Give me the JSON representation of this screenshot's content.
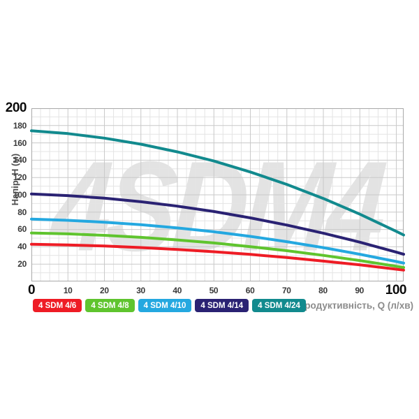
{
  "chart_data": {
    "type": "line",
    "watermark": "4SDM4",
    "xlabel": "Продуктивність, Q (л/хв)",
    "ylabel": "Напір, H (м)",
    "xlim": [
      0,
      102
    ],
    "ylim": [
      0,
      200
    ],
    "x": [
      0,
      10,
      20,
      30,
      40,
      50,
      60,
      70,
      80,
      90,
      100,
      102
    ],
    "x_tick_labels": [
      "0",
      "10",
      "20",
      "30",
      "40",
      "50",
      "60",
      "70",
      "80",
      "90",
      "100"
    ],
    "y_tick_labels": [
      "200",
      "180",
      "160",
      "140",
      "120",
      "100",
      "80",
      "60",
      "40",
      "20"
    ],
    "grid": {
      "minor_x_step": 2.5,
      "major_x_step": 10,
      "minor_y_step": 10,
      "major_y_step": 20,
      "minor_color": "#e4e4e4",
      "major_color": "#c9c9c9",
      "border_color": "#a9a9a9"
    },
    "legend_position": "bottom",
    "series": [
      {
        "name": "4 SDM 4/6",
        "color": "#ee1c25",
        "values": [
          43,
          42.2,
          40.9,
          39.1,
          36.9,
          34.3,
          31.2,
          27.6,
          23.5,
          19.1,
          14.1,
          13.1
        ]
      },
      {
        "name": "4 SDM 4/8",
        "color": "#5fc42e",
        "values": [
          56,
          54.9,
          53.2,
          50.9,
          47.9,
          44.4,
          40.2,
          35.5,
          30.1,
          24.1,
          17.5,
          16.1
        ]
      },
      {
        "name": "4 SDM 4/10",
        "color": "#24a8e0",
        "values": [
          72,
          70.6,
          68.4,
          65.5,
          61.8,
          57.3,
          52.0,
          45.9,
          39.0,
          31.4,
          23.0,
          21.2
        ]
      },
      {
        "name": "4 SDM 4/14",
        "color": "#2a2273",
        "values": [
          101,
          99.1,
          96.1,
          92.0,
          86.9,
          80.7,
          73.4,
          65.1,
          55.7,
          45.3,
          33.8,
          31.4
        ]
      },
      {
        "name": "4 SDM 4/24",
        "color": "#128a8e",
        "values": [
          174,
          170.7,
          165.5,
          158.5,
          149.6,
          139.0,
          126.4,
          112.0,
          95.8,
          77.7,
          57.8,
          53.6
        ]
      }
    ]
  }
}
